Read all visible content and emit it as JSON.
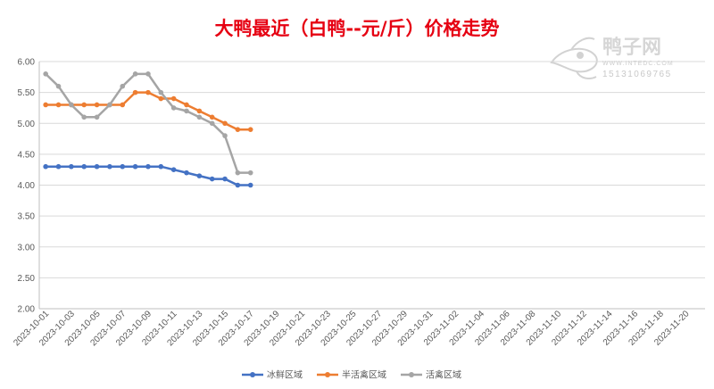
{
  "watermark": {
    "brand": "鸭子网",
    "site": "WWW.INTEDC.COM",
    "phone": "15131069765",
    "logo_icon": "duck-logo-icon"
  },
  "chart_data": {
    "type": "line",
    "title": "大鸭最近（白鸭--元/斤）价格走势",
    "xlabel": "",
    "ylabel": "",
    "ylim": [
      2.0,
      6.0
    ],
    "yticks": [
      "6.00",
      "5.50",
      "5.00",
      "4.50",
      "4.00",
      "3.50",
      "3.00",
      "2.50",
      "2.00"
    ],
    "x_range": [
      "2023-10-01",
      "2023-11-21"
    ],
    "xtick_labels": [
      "2023-10-01",
      "2023-10-03",
      "2023-10-05",
      "2023-10-07",
      "2023-10-09",
      "2023-10-11",
      "2023-10-13",
      "2023-10-15",
      "2023-10-17",
      "2023-10-19",
      "2023-10-21",
      "2023-10-23",
      "2023-10-25",
      "2023-10-27",
      "2023-10-29",
      "2023-10-31",
      "2023-11-02",
      "2023-11-04",
      "2023-11-06",
      "2023-11-08",
      "2023-11-10",
      "2023-11-12",
      "2023-11-14",
      "2023-11-16",
      "2023-11-18",
      "2023-11-20"
    ],
    "x": [
      "2023-10-01",
      "2023-10-02",
      "2023-10-03",
      "2023-10-04",
      "2023-10-05",
      "2023-10-06",
      "2023-10-07",
      "2023-10-08",
      "2023-10-09",
      "2023-10-10",
      "2023-10-11",
      "2023-10-12",
      "2023-10-13",
      "2023-10-14",
      "2023-10-15",
      "2023-10-16",
      "2023-10-17"
    ],
    "grid": "horizontal",
    "legend": "bottom",
    "series": [
      {
        "name": "冰鲜区域",
        "color": "#4472c4",
        "values": [
          4.3,
          4.3,
          4.3,
          4.3,
          4.3,
          4.3,
          4.3,
          4.3,
          4.3,
          4.3,
          4.25,
          4.2,
          4.15,
          4.1,
          4.1,
          4.0,
          4.0
        ]
      },
      {
        "name": "半活禽区域",
        "color": "#ed7d31",
        "values": [
          5.3,
          5.3,
          5.3,
          5.3,
          5.3,
          5.3,
          5.3,
          5.5,
          5.5,
          5.4,
          5.4,
          5.3,
          5.2,
          5.1,
          5.0,
          4.9,
          4.9
        ]
      },
      {
        "name": "活禽区域",
        "color": "#a5a5a5",
        "values": [
          5.8,
          5.6,
          5.3,
          5.1,
          5.1,
          5.3,
          5.6,
          5.8,
          5.8,
          5.5,
          5.25,
          5.2,
          5.1,
          5.0,
          4.8,
          4.2,
          4.2
        ]
      }
    ]
  }
}
